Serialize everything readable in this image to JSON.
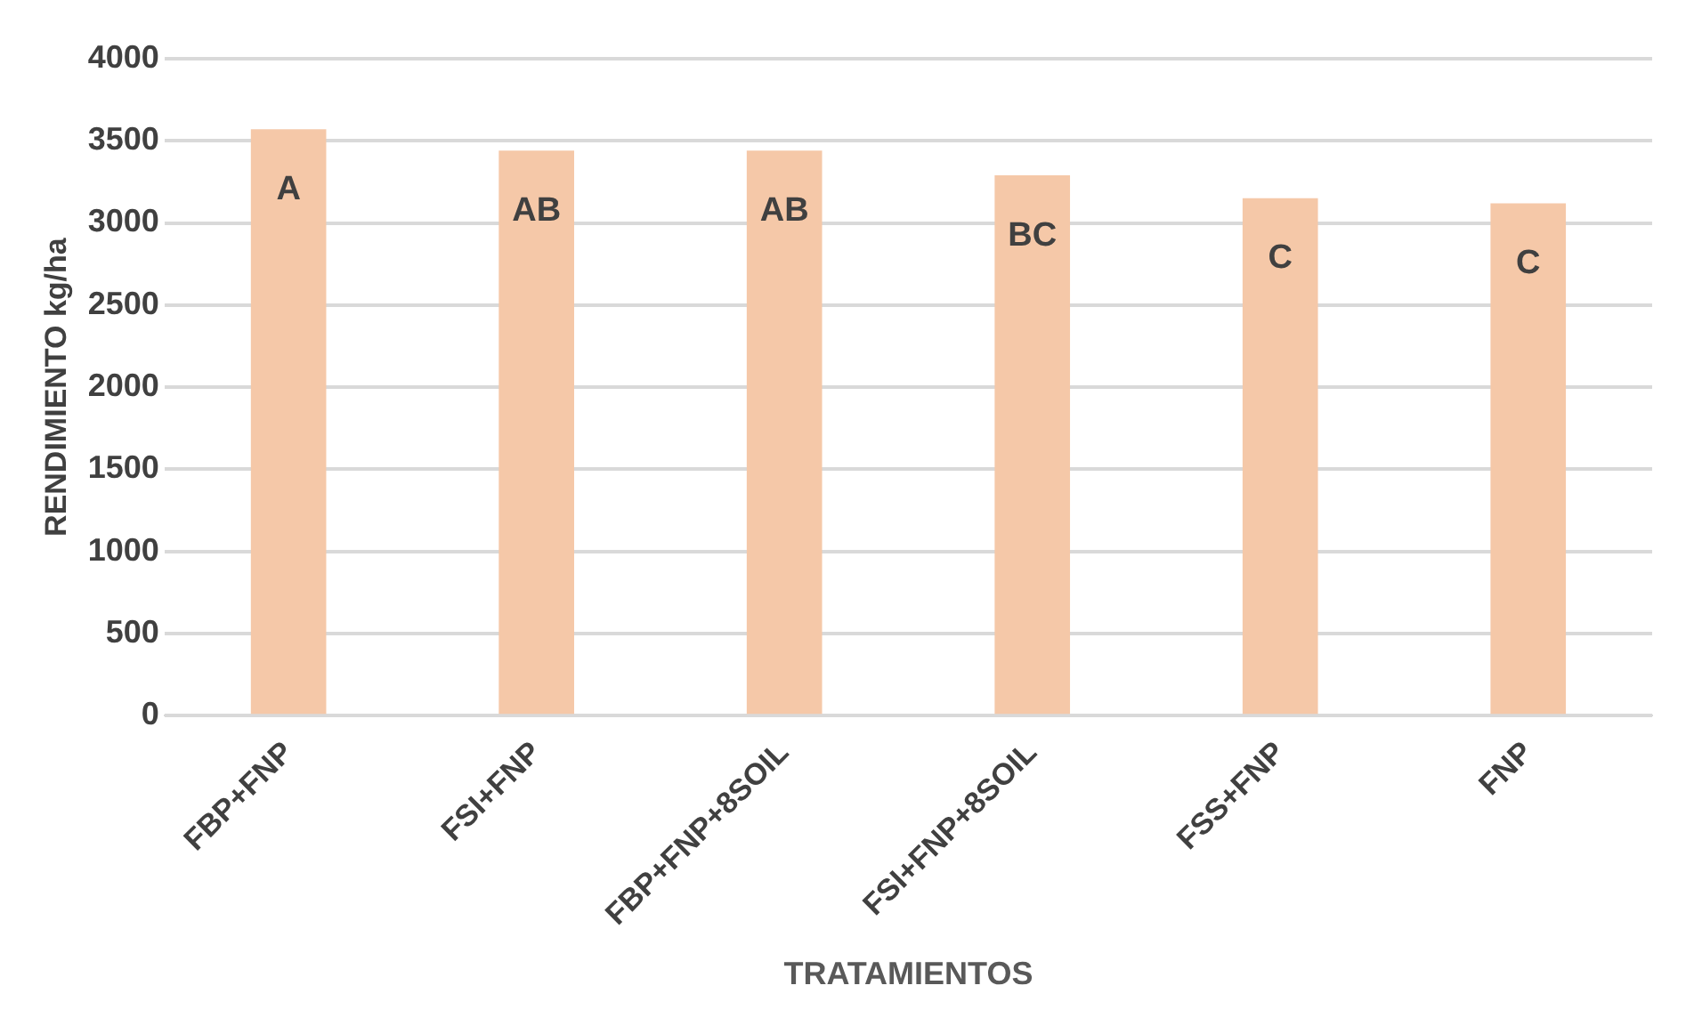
{
  "chart_data": {
    "type": "bar",
    "xlabel": "TRATAMIENTOS",
    "ylabel": "RENDIMIENTO kg/ha",
    "categories": [
      "FBP+FNP",
      "FSI+FNP",
      "FBP+FNP+8SOIL",
      "FSI+FNP+8SOIL",
      "FSS+FNP",
      "FNP"
    ],
    "values": [
      3570,
      3440,
      3440,
      3290,
      3150,
      3120
    ],
    "color": "#f5c8a8",
    "ylim": [
      0,
      4000
    ],
    "yticks": [
      0,
      500,
      1000,
      1500,
      2000,
      2500,
      3000,
      3500,
      4000
    ],
    "grid": "y",
    "annotations": [
      "A",
      "AB",
      "AB",
      "BC",
      "C",
      "C"
    ]
  }
}
